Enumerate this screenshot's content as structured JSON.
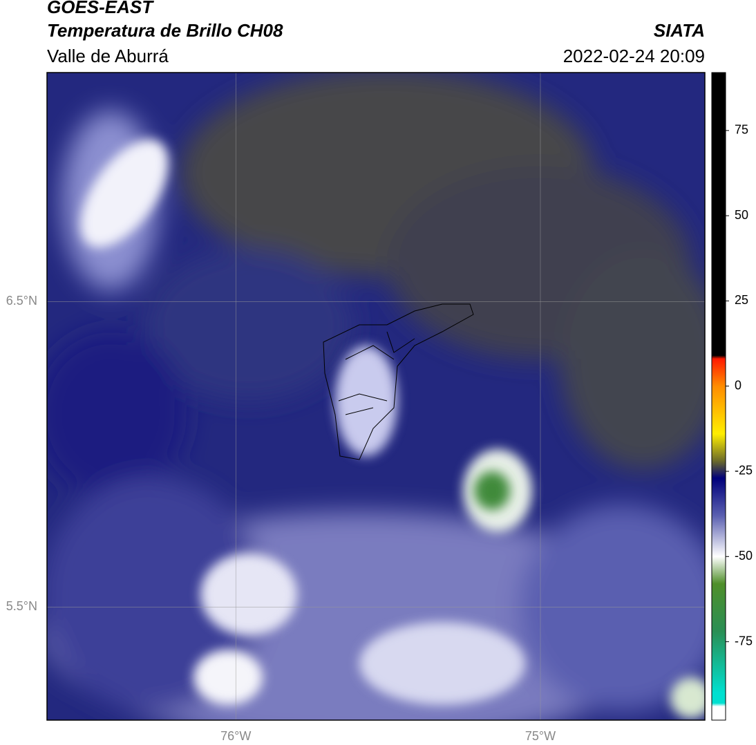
{
  "map": {
    "title": "GOES-EAST",
    "subtitle": "Temperatura de Brillo CH08",
    "region": "Valle de Aburrá",
    "source": "SIATA",
    "datetime": "2022-02-24 20:09",
    "xlim": [
      -76.62,
      -74.46
    ],
    "ylim": [
      5.13,
      7.25
    ],
    "xticks": [
      {
        "value": -76,
        "label": "76°W"
      },
      {
        "value": -75,
        "label": "75°W"
      }
    ],
    "yticks": [
      {
        "value": 6.5,
        "label": "6.5°N"
      },
      {
        "value": 5.5,
        "label": "5.5°N"
      }
    ],
    "grid": true,
    "colorbar": {
      "lim": [
        -98,
        92
      ],
      "ticks": [
        75,
        50,
        25,
        0,
        -25,
        -50,
        -75
      ],
      "stops": [
        {
          "value": 92,
          "color": "#000000"
        },
        {
          "value": 9,
          "color": "#000000"
        },
        {
          "value": 8,
          "color": "#ff1a00"
        },
        {
          "value": 0,
          "color": "#ff8c00"
        },
        {
          "value": -14,
          "color": "#ffee00"
        },
        {
          "value": -22,
          "color": "#6b6a2a"
        },
        {
          "value": -27,
          "color": "#00007a"
        },
        {
          "value": -38,
          "color": "#5a5fb0"
        },
        {
          "value": -50,
          "color": "#ffffff"
        },
        {
          "value": -58,
          "color": "#4f8f2a"
        },
        {
          "value": -72,
          "color": "#2a8f55"
        },
        {
          "value": -90,
          "color": "#00e0d0"
        },
        {
          "value": -93,
          "color": "#00e0d0"
        },
        {
          "value": -94,
          "color": "#ffffff"
        }
      ]
    }
  }
}
